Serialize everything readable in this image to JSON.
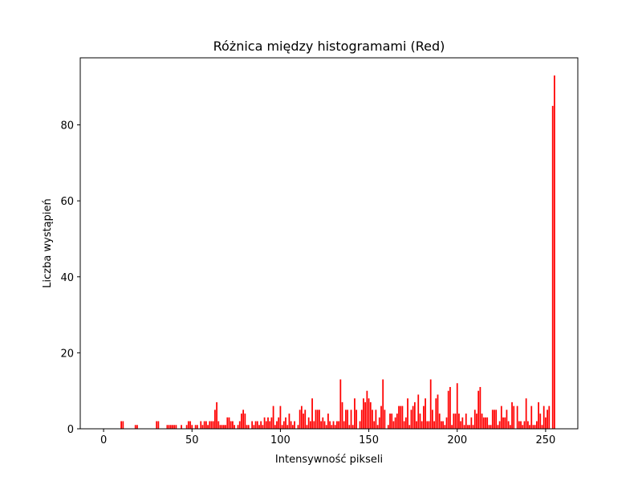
{
  "chart_data": {
    "type": "bar",
    "title": "Różnica między histogramami (Red)",
    "xlabel": "Intensywność pikseli",
    "ylabel": "Liczba wystąpień",
    "color": "#ff0000",
    "x": [
      0,
      1,
      2,
      3,
      4,
      5,
      6,
      7,
      8,
      9,
      10,
      11,
      12,
      13,
      14,
      15,
      16,
      17,
      18,
      19,
      20,
      21,
      22,
      23,
      24,
      25,
      26,
      27,
      28,
      29,
      30,
      31,
      32,
      33,
      34,
      35,
      36,
      37,
      38,
      39,
      40,
      41,
      42,
      43,
      44,
      45,
      46,
      47,
      48,
      49,
      50,
      51,
      52,
      53,
      54,
      55,
      56,
      57,
      58,
      59,
      60,
      61,
      62,
      63,
      64,
      65,
      66,
      67,
      68,
      69,
      70,
      71,
      72,
      73,
      74,
      75,
      76,
      77,
      78,
      79,
      80,
      81,
      82,
      83,
      84,
      85,
      86,
      87,
      88,
      89,
      90,
      91,
      92,
      93,
      94,
      95,
      96,
      97,
      98,
      99,
      100,
      101,
      102,
      103,
      104,
      105,
      106,
      107,
      108,
      109,
      110,
      111,
      112,
      113,
      114,
      115,
      116,
      117,
      118,
      119,
      120,
      121,
      122,
      123,
      124,
      125,
      126,
      127,
      128,
      129,
      130,
      131,
      132,
      133,
      134,
      135,
      136,
      137,
      138,
      139,
      140,
      141,
      142,
      143,
      144,
      145,
      146,
      147,
      148,
      149,
      150,
      151,
      152,
      153,
      154,
      155,
      156,
      157,
      158,
      159,
      160,
      161,
      162,
      163,
      164,
      165,
      166,
      167,
      168,
      169,
      170,
      171,
      172,
      173,
      174,
      175,
      176,
      177,
      178,
      179,
      180,
      181,
      182,
      183,
      184,
      185,
      186,
      187,
      188,
      189,
      190,
      191,
      192,
      193,
      194,
      195,
      196,
      197,
      198,
      199,
      200,
      201,
      202,
      203,
      204,
      205,
      206,
      207,
      208,
      209,
      210,
      211,
      212,
      213,
      214,
      215,
      216,
      217,
      218,
      219,
      220,
      221,
      222,
      223,
      224,
      225,
      226,
      227,
      228,
      229,
      230,
      231,
      232,
      233,
      234,
      235,
      236,
      237,
      238,
      239,
      240,
      241,
      242,
      243,
      244,
      245,
      246,
      247,
      248,
      249,
      250,
      251,
      252,
      253,
      254,
      255
    ],
    "values": [
      0,
      0,
      0,
      0,
      0,
      0,
      0,
      0,
      0,
      0,
      2,
      2,
      0,
      0,
      0,
      0,
      0,
      0,
      1,
      1,
      0,
      0,
      0,
      0,
      0,
      0,
      0,
      0,
      0,
      0,
      2,
      2,
      0,
      0,
      0,
      0,
      1,
      1,
      1,
      1,
      1,
      1,
      0,
      0,
      1,
      0,
      0,
      1,
      2,
      2,
      1,
      0,
      1,
      1,
      0,
      2,
      1,
      2,
      2,
      1,
      2,
      2,
      2,
      5,
      7,
      2,
      1,
      1,
      1,
      1,
      3,
      3,
      2,
      2,
      1,
      0,
      1,
      2,
      4,
      5,
      4,
      1,
      1,
      0,
      2,
      1,
      2,
      2,
      1,
      2,
      1,
      3,
      2,
      3,
      2,
      3,
      6,
      1,
      2,
      3,
      6,
      1,
      2,
      3,
      1,
      4,
      2,
      1,
      2,
      0,
      1,
      5,
      6,
      4,
      5,
      1,
      3,
      2,
      8,
      2,
      5,
      5,
      5,
      2,
      3,
      2,
      1,
      4,
      2,
      1,
      2,
      1,
      2,
      2,
      13,
      7,
      2,
      5,
      5,
      1,
      5,
      1,
      8,
      5,
      0,
      2,
      5,
      8,
      7,
      10,
      8,
      7,
      5,
      2,
      5,
      1,
      3,
      6,
      13,
      5,
      0,
      1,
      4,
      4,
      2,
      3,
      4,
      6,
      6,
      6,
      2,
      3,
      8,
      1,
      5,
      6,
      7,
      2,
      9,
      4,
      2,
      6,
      8,
      2,
      2,
      13,
      5,
      2,
      8,
      9,
      4,
      2,
      2,
      1,
      3,
      10,
      11,
      1,
      4,
      4,
      12,
      4,
      2,
      3,
      1,
      4,
      1,
      1,
      3,
      1,
      5,
      4,
      10,
      11,
      4,
      3,
      3,
      3,
      1,
      1,
      5,
      5,
      5,
      1,
      2,
      6,
      3,
      3,
      5,
      2,
      1,
      7,
      6,
      0,
      6,
      2,
      2,
      1,
      2,
      8,
      2,
      1,
      6,
      1,
      1,
      2,
      7,
      4,
      1,
      6,
      3,
      5,
      6,
      0,
      85,
      93
    ],
    "xlim": [
      -13.2,
      268.2
    ],
    "xticks": [
      0,
      50,
      100,
      150,
      200,
      250
    ],
    "ylim": [
      0,
      97.65
    ],
    "yticks": [
      0,
      20,
      40,
      60,
      80
    ]
  }
}
